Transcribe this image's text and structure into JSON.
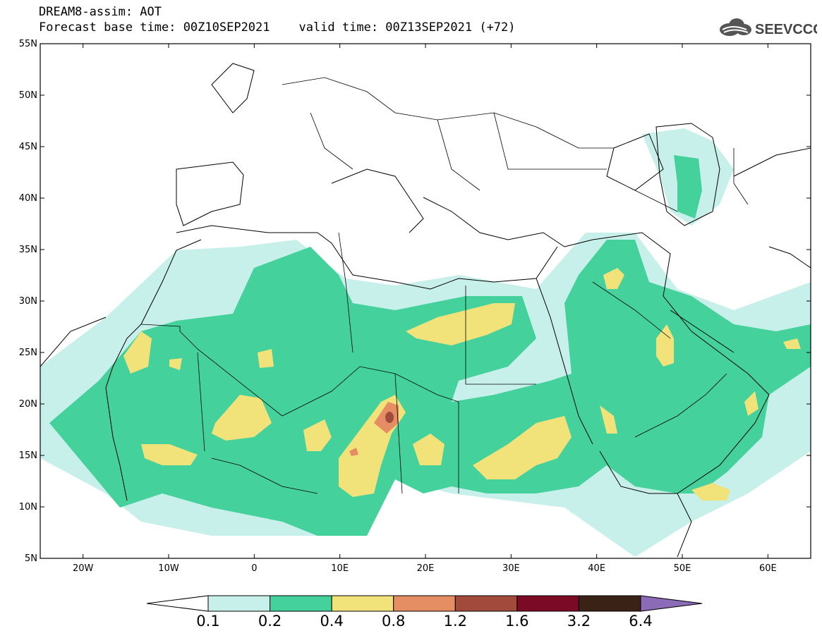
{
  "title": {
    "line1": "DREAM8-assim: AOT",
    "base_label": "Forecast base time: 00Z10SEP2021",
    "valid_label": "valid time: 00Z13SEP2021 (+72)"
  },
  "logo": {
    "text": "SEEVCCC",
    "icon": "cloud-icon"
  },
  "axes": {
    "lat_ticks": [
      "55N",
      "50N",
      "45N",
      "40N",
      "35N",
      "30N",
      "25N",
      "20N",
      "15N",
      "10N",
      "5N"
    ],
    "lon_ticks": [
      "20W",
      "10W",
      "0",
      "10E",
      "20E",
      "30E",
      "40E",
      "50E",
      "60E"
    ],
    "lat_range": [
      5,
      55
    ],
    "lon_range": [
      -25,
      65
    ]
  },
  "colorbar": {
    "levels": [
      "0.1",
      "0.2",
      "0.4",
      "0.8",
      "1.2",
      "1.6",
      "3.2",
      "6.4"
    ],
    "colors": [
      "#c8f0ea",
      "#44d19c",
      "#f2e27a",
      "#e58e64",
      "#a24a3c",
      "#7a0a25",
      "#3a2316",
      "#8b6ab8"
    ],
    "under_color": "#ffffff"
  }
}
